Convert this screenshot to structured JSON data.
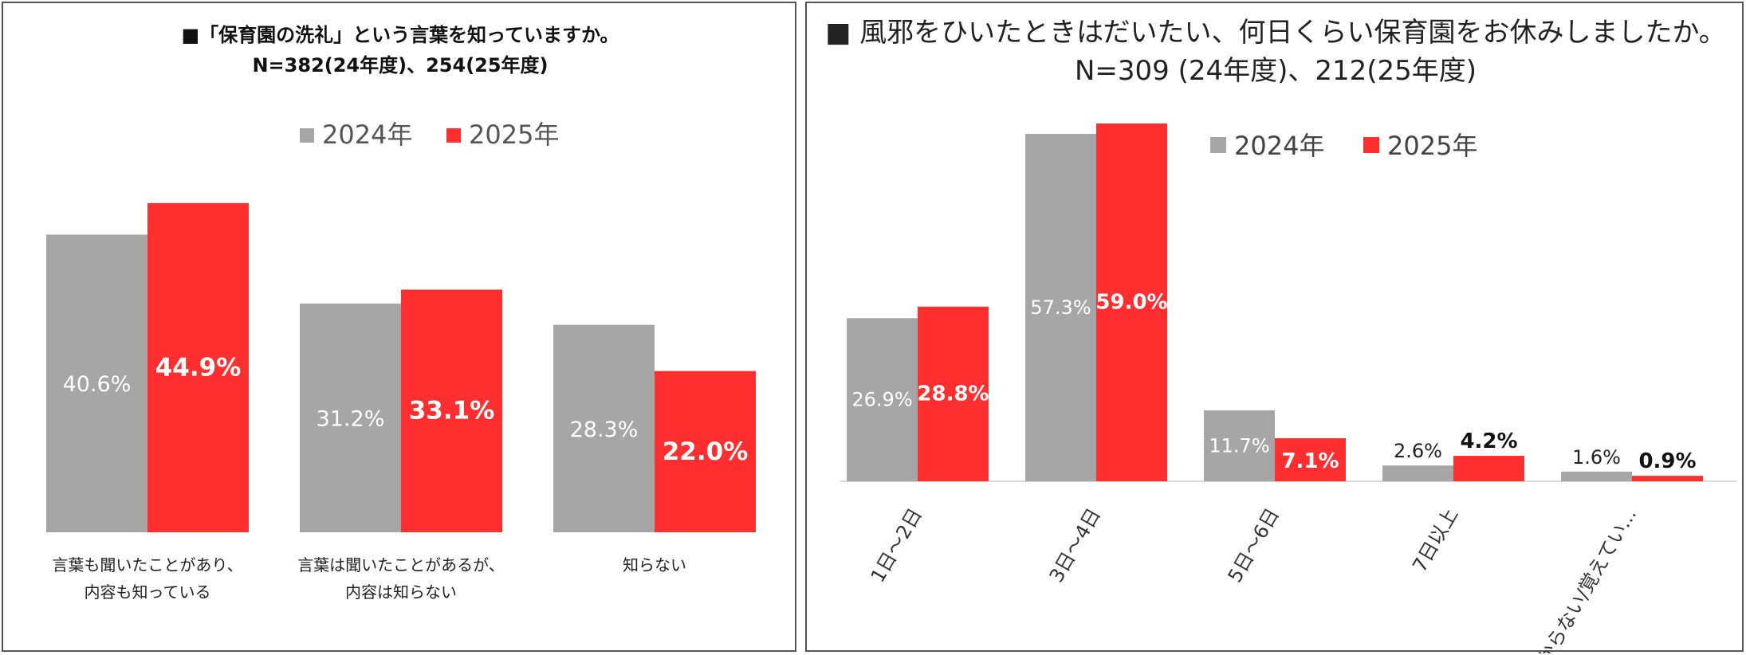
{
  "colors": {
    "y2024": "#a6a6a6",
    "y2025": "#ff2f2f"
  },
  "chart_data": [
    {
      "type": "bar",
      "title": "■「保育園の洗礼」という言葉を知っていますか。",
      "subtitle": "N=382(24年度)、254(25年度)",
      "legend": [
        "2024年",
        "2025年"
      ],
      "legend_position": "top-right",
      "categories": [
        [
          "言葉も聞いたことがあり、",
          "内容も知っている"
        ],
        [
          "言葉は聞いたことがあるが、",
          "内容は知らない"
        ],
        [
          "知らない"
        ]
      ],
      "series": [
        {
          "name": "2024年",
          "values": [
            40.6,
            31.2,
            28.3
          ],
          "labels": [
            "40.6%",
            "31.2%",
            "28.3%"
          ]
        },
        {
          "name": "2025年",
          "values": [
            44.9,
            33.1,
            22.0
          ],
          "labels": [
            "44.9%",
            "33.1%",
            "22.0%"
          ]
        }
      ],
      "ylim": [
        0,
        50
      ],
      "grid": false
    },
    {
      "type": "bar",
      "title": "■ 風邪をひいたときはだいたい、何日くらい保育園をお休みしましたか。",
      "subtitle": "N=309 (24年度)、212(25年度)",
      "legend": [
        "2024年",
        "2025年"
      ],
      "legend_position": "top-right",
      "categories": [
        "1日～2日",
        "3日～4日",
        "5日～6日",
        "7日以上",
        "分からない/覚えてい..."
      ],
      "series": [
        {
          "name": "2024年",
          "values": [
            26.9,
            57.3,
            11.7,
            2.6,
            1.6
          ],
          "labels": [
            "26.9%",
            "57.3%",
            "11.7%",
            "2.6%",
            "1.6%"
          ]
        },
        {
          "name": "2025年",
          "values": [
            28.8,
            59.0,
            7.1,
            4.2,
            0.9
          ],
          "labels": [
            "28.8%",
            "59.0%",
            "7.1%",
            "4.2%",
            "0.9%"
          ]
        }
      ],
      "ylim": [
        0,
        59
      ],
      "grid": false
    }
  ]
}
